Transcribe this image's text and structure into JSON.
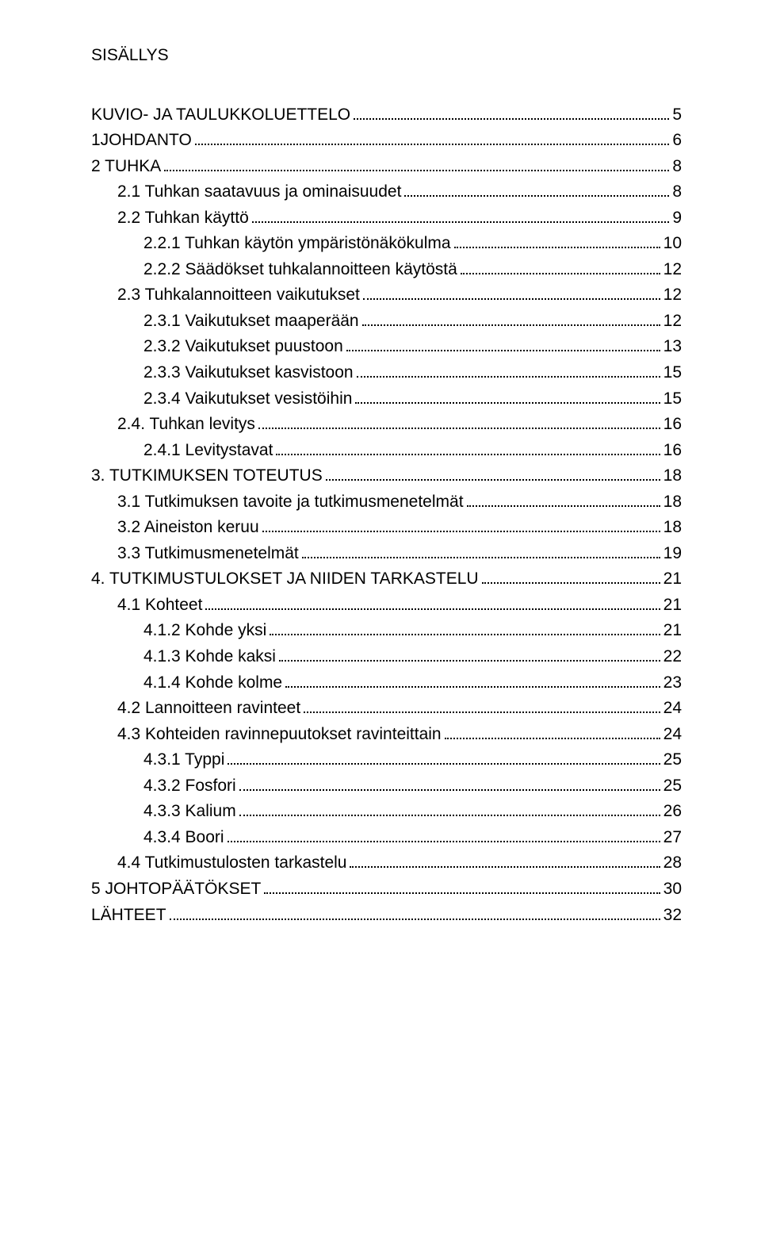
{
  "title": "SISÄLLYS",
  "toc": [
    {
      "label": "KUVIO- JA TAULUKKOLUETTELO",
      "page": "5",
      "level": 0,
      "gapBefore": true
    },
    {
      "label": "1JOHDANTO",
      "page": "6",
      "level": 0
    },
    {
      "label": "2 TUHKA",
      "page": "8",
      "level": 0
    },
    {
      "label": "2.1 Tuhkan saatavuus ja ominaisuudet",
      "page": "8",
      "level": 1
    },
    {
      "label": "2.2 Tuhkan käyttö",
      "page": "9",
      "level": 1
    },
    {
      "label": "2.2.1 Tuhkan käytön ympäristönäkökulma",
      "page": "10",
      "level": 2
    },
    {
      "label": "2.2.2 Säädökset tuhkalannoitteen käytöstä",
      "page": "12",
      "level": 2
    },
    {
      "label": "2.3 Tuhkalannoitteen vaikutukset",
      "page": "12",
      "level": 1
    },
    {
      "label": "2.3.1 Vaikutukset maaperään",
      "page": "12",
      "level": 2
    },
    {
      "label": "2.3.2 Vaikutukset puustoon",
      "page": "13",
      "level": 2
    },
    {
      "label": "2.3.3 Vaikutukset kasvistoon",
      "page": "15",
      "level": 2
    },
    {
      "label": "2.3.4 Vaikutukset vesistöihin",
      "page": "15",
      "level": 2
    },
    {
      "label": "2.4. Tuhkan levitys",
      "page": "16",
      "level": 1
    },
    {
      "label": "2.4.1 Levitystavat",
      "page": "16",
      "level": 2
    },
    {
      "label": "3. TUTKIMUKSEN TOTEUTUS",
      "page": "18",
      "level": 0
    },
    {
      "label": "3.1 Tutkimuksen tavoite ja tutkimusmenetelmät",
      "page": "18",
      "level": 1
    },
    {
      "label": "3.2 Aineiston keruu",
      "page": "18",
      "level": 1
    },
    {
      "label": "3.3 Tutkimusmenetelmät",
      "page": "19",
      "level": 1
    },
    {
      "label": "4. TUTKIMUSTULOKSET JA NIIDEN TARKASTELU",
      "page": "21",
      "level": 0
    },
    {
      "label": "4.1 Kohteet",
      "page": "21",
      "level": 1
    },
    {
      "label": "4.1.2 Kohde yksi",
      "page": "21",
      "level": 2
    },
    {
      "label": "4.1.3 Kohde kaksi",
      "page": "22",
      "level": 2
    },
    {
      "label": "4.1.4 Kohde kolme",
      "page": "23",
      "level": 2
    },
    {
      "label": "4.2 Lannoitteen ravinteet",
      "page": "24",
      "level": 1
    },
    {
      "label": "4.3 Kohteiden ravinnepuutokset ravinteittain",
      "page": "24",
      "level": 1
    },
    {
      "label": "4.3.1 Typpi",
      "page": "25",
      "level": 2
    },
    {
      "label": "4.3.2 Fosfori",
      "page": "25",
      "level": 2
    },
    {
      "label": "4.3.3 Kalium",
      "page": "26",
      "level": 2
    },
    {
      "label": "4.3.4 Boori",
      "page": "27",
      "level": 2
    },
    {
      "label": "4.4 Tutkimustulosten tarkastelu",
      "page": "28",
      "level": 1
    },
    {
      "label": "5 JOHTOPÄÄTÖKSET",
      "page": "30",
      "level": 0
    },
    {
      "label": "LÄHTEET",
      "page": "32",
      "level": 0
    }
  ]
}
